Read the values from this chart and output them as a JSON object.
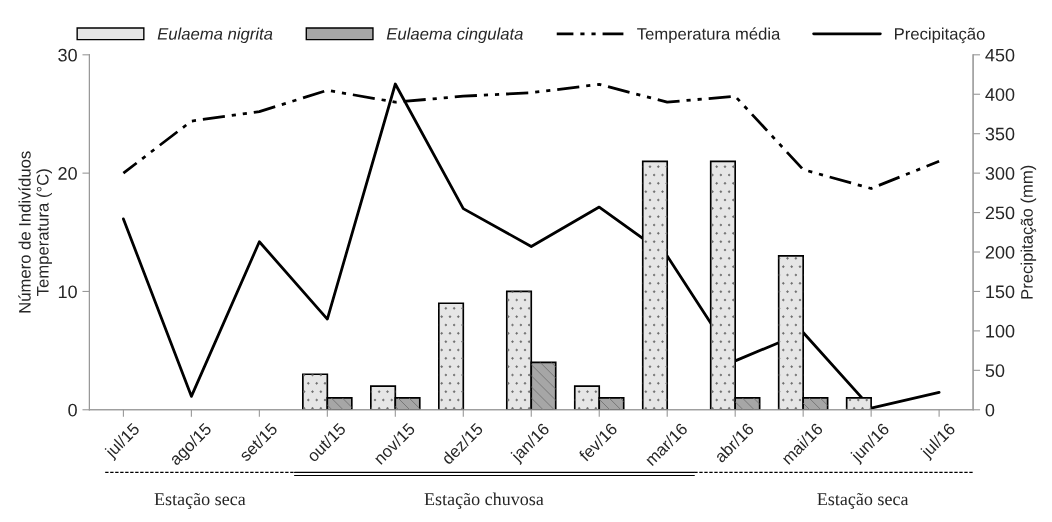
{
  "chart_data": {
    "type": "bar",
    "categories": [
      "jul/15",
      "ago/15",
      "set/15",
      "out/15",
      "nov/15",
      "dez/15",
      "jan/16",
      "fev/16",
      "mar/16",
      "abr/16",
      "mai/16",
      "jun/16",
      "jul/16"
    ],
    "series": [
      {
        "name": "Eulaema nigrita",
        "color": "#e6e6e6",
        "values": [
          0,
          0,
          0,
          3,
          2,
          9,
          10,
          2,
          21,
          21,
          13,
          1,
          0
        ]
      },
      {
        "name": "Eulaema cingulata",
        "color": "#a6a6a6",
        "values": [
          0,
          0,
          0,
          1,
          1,
          0,
          4,
          1,
          0,
          1,
          1,
          0,
          0
        ]
      },
      {
        "name": "Temperatura média",
        "type": "line",
        "line_style": "dashdot",
        "color": "#000000",
        "values": [
          20,
          24.4,
          25.2,
          27,
          26,
          26.5,
          26.8,
          27.5,
          26,
          26.5,
          20.3,
          18.7,
          21
        ]
      },
      {
        "name": "Precipitação",
        "type": "line",
        "line_style": "solid",
        "axis": "y2",
        "color": "#000000",
        "values": [
          242,
          17,
          213,
          115,
          413,
          255,
          207,
          257,
          195,
          62,
          98,
          2,
          22
        ]
      }
    ],
    "ylabel": "Número de Indivíduos\nTemperatura (°C)",
    "y2label": "Precipitação (mm)",
    "ylim": [
      0,
      30
    ],
    "yticks": [
      0,
      10,
      20,
      30
    ],
    "y2lim": [
      0,
      450
    ],
    "y2ticks": [
      0,
      50,
      100,
      150,
      200,
      250,
      300,
      350,
      400,
      450
    ],
    "grid": false,
    "legend": "top",
    "annotations": [
      "Estação seca",
      "Estação chuvosa",
      "Estação seca"
    ]
  }
}
